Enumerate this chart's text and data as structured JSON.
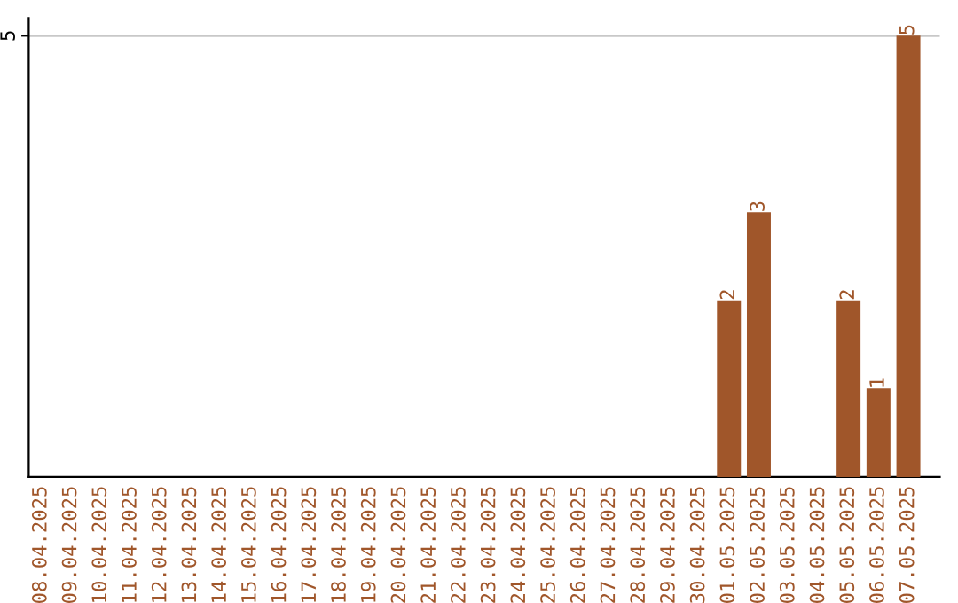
{
  "chart_data": {
    "type": "bar",
    "categories": [
      "08.04.2025",
      "09.04.2025",
      "10.04.2025",
      "11.04.2025",
      "12.04.2025",
      "13.04.2025",
      "14.04.2025",
      "15.04.2025",
      "16.04.2025",
      "17.04.2025",
      "18.04.2025",
      "19.04.2025",
      "20.04.2025",
      "21.04.2025",
      "22.04.2025",
      "23.04.2025",
      "24.04.2025",
      "25.04.2025",
      "26.04.2025",
      "27.04.2025",
      "28.04.2025",
      "29.04.2025",
      "30.04.2025",
      "01.05.2025",
      "02.05.2025",
      "03.05.2025",
      "04.05.2025",
      "05.05.2025",
      "06.05.2025",
      "07.05.2025"
    ],
    "values": [
      null,
      null,
      null,
      null,
      null,
      null,
      null,
      null,
      null,
      null,
      null,
      null,
      null,
      null,
      null,
      null,
      null,
      null,
      null,
      null,
      null,
      null,
      null,
      2,
      3,
      null,
      null,
      2,
      1,
      5
    ],
    "data_labels": true,
    "color": "#a0562a",
    "ylim": [
      0,
      5.2
    ],
    "yticks": [
      5
    ],
    "grid": "y"
  }
}
